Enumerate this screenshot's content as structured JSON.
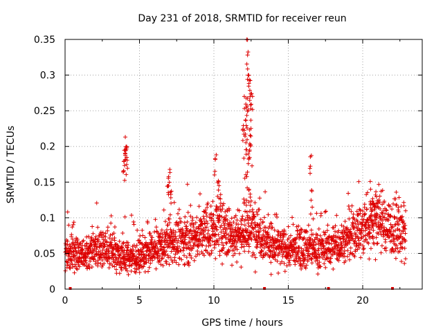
{
  "chart_data": {
    "type": "scatter",
    "title": "Day 231 of 2018, SRMTID for receiver reun",
    "xlabel": "GPS time / hours",
    "ylabel": "SRMTID / TECUs",
    "xlim": [
      0,
      24
    ],
    "ylim": [
      0,
      0.35
    ],
    "xticks": [
      0,
      5,
      10,
      15,
      20
    ],
    "yticks": [
      0,
      0.05,
      0.1,
      0.15,
      0.2,
      0.25,
      0.3,
      0.35
    ],
    "xtick_labels": [
      "0",
      "5",
      "10",
      "15",
      "20"
    ],
    "ytick_labels": [
      "0",
      "0.05",
      "0.1",
      "0.15",
      "0.2",
      "0.25",
      "0.3",
      "0.35"
    ],
    "grid": true,
    "marker": "+",
    "color": "#dd0000",
    "series": [
      {
        "name": "SRMTID",
        "baseline": {
          "x": [
            0,
            1,
            2,
            3,
            4,
            5,
            6,
            6.5,
            7,
            8,
            9,
            10,
            10.5,
            11,
            12,
            13,
            13.5,
            14,
            15,
            16,
            17,
            18,
            19,
            20,
            21,
            21.5,
            22,
            22.5,
            23
          ],
          "y": [
            0.05,
            0.05,
            0.055,
            0.055,
            0.045,
            0.045,
            0.055,
            0.06,
            0.065,
            0.07,
            0.075,
            0.085,
            0.09,
            0.075,
            0.08,
            0.085,
            0.07,
            0.06,
            0.055,
            0.06,
            0.055,
            0.06,
            0.07,
            0.085,
            0.1,
            0.09,
            0.085,
            0.08,
            0.07
          ]
        },
        "peaks": {
          "x": [
            4.0,
            4.05,
            4.1,
            3.95,
            4.15,
            6.9,
            7.0,
            7.1,
            10.1,
            10.3,
            12.0,
            12.15,
            12.25,
            12.3,
            12.4,
            12.45,
            12.2,
            12.35,
            16.5,
            16.55,
            20.5,
            20.7,
            20.9
          ],
          "y": [
            0.2,
            0.215,
            0.22,
            0.18,
            0.19,
            0.16,
            0.175,
            0.155,
            0.19,
            0.17,
            0.24,
            0.22,
            0.35,
            0.31,
            0.295,
            0.23,
            0.26,
            0.205,
            0.197,
            0.14,
            0.14,
            0.15,
            0.145
          ]
        },
        "zero_markers_x": [
          0.35,
          13.4,
          17.7,
          22.0
        ],
        "n_points": 2300
      }
    ]
  }
}
